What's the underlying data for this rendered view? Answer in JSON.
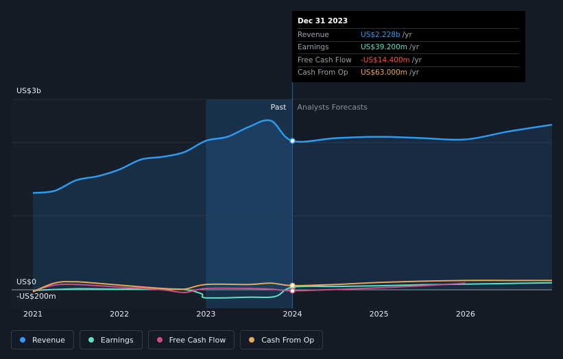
{
  "chart_data": {
    "type": "line",
    "y_axis_labels": {
      "top": "US$3b",
      "zero": "US$0",
      "bottom": "-US$200m"
    },
    "ylim": [
      -200,
      2850
    ],
    "xlim": [
      2021.0,
      2027.0
    ],
    "x_ticks": [
      {
        "value": 2021,
        "label": "2021"
      },
      {
        "value": 2022,
        "label": "2022"
      },
      {
        "value": 2023,
        "label": "2023"
      },
      {
        "value": 2024,
        "label": "2024"
      },
      {
        "value": 2025,
        "label": "2025"
      },
      {
        "value": 2026,
        "label": "2026"
      }
    ],
    "past_label": "Past",
    "forecast_label": "Analysts Forecasts",
    "divider_x": 2024.0,
    "highlight_start_x": 2023.0,
    "series": [
      {
        "name": "Revenue",
        "color": "#2d9bf0",
        "area": true,
        "x": [
          2021.0,
          2021.25,
          2021.5,
          2021.75,
          2022.0,
          2022.25,
          2022.5,
          2022.75,
          2023.0,
          2023.25,
          2023.5,
          2023.75,
          2024.0,
          2024.5,
          2025.0,
          2025.5,
          2026.0,
          2026.5,
          2027.0
        ],
        "values": [
          1450,
          1480,
          1640,
          1700,
          1800,
          1950,
          1990,
          2060,
          2230,
          2290,
          2440,
          2530,
          2228,
          2270,
          2290,
          2270,
          2250,
          2370,
          2470
        ]
      },
      {
        "name": "Earnings",
        "color": "#5ce0c6",
        "x": [
          2021.0,
          2021.5,
          2022.0,
          2022.5,
          2022.75,
          2022.95,
          2023.0,
          2023.5,
          2023.8,
          2024.0,
          2024.5,
          2025.0,
          2025.5,
          2026.0,
          2026.5,
          2027.0
        ],
        "values": [
          -10,
          15,
          10,
          10,
          5,
          -60,
          -120,
          -110,
          -100,
          39.2,
          50,
          60,
          75,
          85,
          95,
          105
        ]
      },
      {
        "name": "Free Cash Flow",
        "color": "#d04d86",
        "x": [
          2021.0,
          2021.25,
          2021.5,
          2022.0,
          2022.5,
          2022.75,
          2023.0,
          2023.5,
          2023.75,
          2024.0,
          2024.5,
          2025.0,
          2025.5,
          2026.0
        ],
        "values": [
          -20,
          70,
          80,
          40,
          0,
          -40,
          20,
          20,
          10,
          -14.4,
          5,
          30,
          60,
          100
        ]
      },
      {
        "name": "Cash From Op",
        "color": "#e8a95a",
        "x": [
          2021.0,
          2021.25,
          2021.5,
          2022.0,
          2022.5,
          2022.75,
          2023.0,
          2023.5,
          2023.75,
          2024.0,
          2024.5,
          2025.0,
          2025.5,
          2026.0,
          2026.5,
          2027.0
        ],
        "values": [
          -30,
          100,
          120,
          70,
          20,
          10,
          80,
          80,
          100,
          63,
          80,
          110,
          130,
          140,
          140,
          140
        ]
      }
    ]
  },
  "tooltip": {
    "date": "Dec 31 2023",
    "rows": [
      {
        "label": "Revenue",
        "value": "US$2.228b",
        "unit": "/yr",
        "color": "#2d9bf0"
      },
      {
        "label": "Earnings",
        "value": "US$39.200m",
        "unit": "/yr",
        "color": "#5ce0c6"
      },
      {
        "label": "Free Cash Flow",
        "value": "-US$14.400m",
        "unit": "/yr",
        "color": "#ff4d4d"
      },
      {
        "label": "Cash From Op",
        "value": "US$63.000m",
        "unit": "/yr",
        "color": "#e8a95a"
      }
    ]
  },
  "legend": [
    {
      "label": "Revenue",
      "color": "#2d9bf0"
    },
    {
      "label": "Earnings",
      "color": "#5ce0c6"
    },
    {
      "label": "Free Cash Flow",
      "color": "#d04d86"
    },
    {
      "label": "Cash From Op",
      "color": "#e8a95a"
    }
  ]
}
